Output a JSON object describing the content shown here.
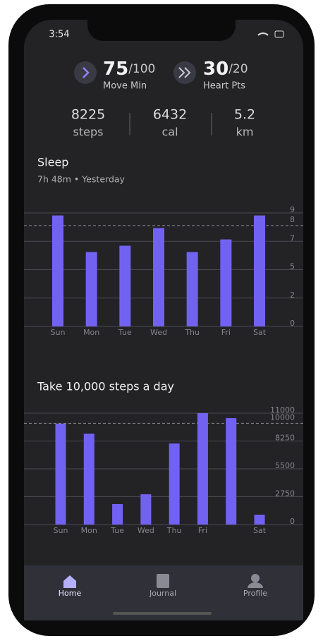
{
  "status_bar": {
    "time": "3:54"
  },
  "goals": [
    {
      "value": 75,
      "target": "/100",
      "label": "Move Min"
    },
    {
      "value": 30,
      "target": "/20",
      "label": "Heart Pts"
    }
  ],
  "stats": [
    {
      "value": 8225,
      "label": "steps"
    },
    {
      "value": 6432,
      "label": "cal"
    },
    {
      "value": 5.2,
      "label": "km"
    }
  ],
  "charts": [
    {
      "type": "bar",
      "title": "Sleep",
      "subtitle": "7h 48m • Yesterday",
      "categories": [
        "Sun",
        "Mon",
        "Tue",
        "Wed",
        "Thu",
        "Fri",
        "Sat"
      ],
      "values": [
        8.8,
        5.9,
        6.4,
        7.8,
        5.9,
        6.9,
        8.8
      ],
      "color": "#7262f2",
      "ylim": [
        0,
        9
      ],
      "yticks": [
        0,
        {
          "value": 2.25,
          "label": "2"
        },
        {
          "value": 4.5,
          "label": "5"
        },
        {
          "value": 6.75,
          "label": "7"
        },
        9
      ],
      "goal": 8,
      "grid": true
    },
    {
      "type": "bar",
      "title": "Take 10,000 steps a day",
      "categories": [
        "Sun",
        "Mon",
        "Tue",
        "Wed",
        "Thu",
        "Fri",
        null,
        "Sat"
      ],
      "values": [
        9960,
        8980,
        2020,
        2990,
        8010,
        11000,
        10510,
        975
      ],
      "color": "#7262f2",
      "ylim": [
        0,
        11000
      ],
      "yticks": [
        0,
        2750,
        5500,
        8250,
        11000
      ],
      "goal": 10000,
      "grid": true
    }
  ],
  "nav": [
    "Home",
    "Journal",
    "Profile"
  ]
}
